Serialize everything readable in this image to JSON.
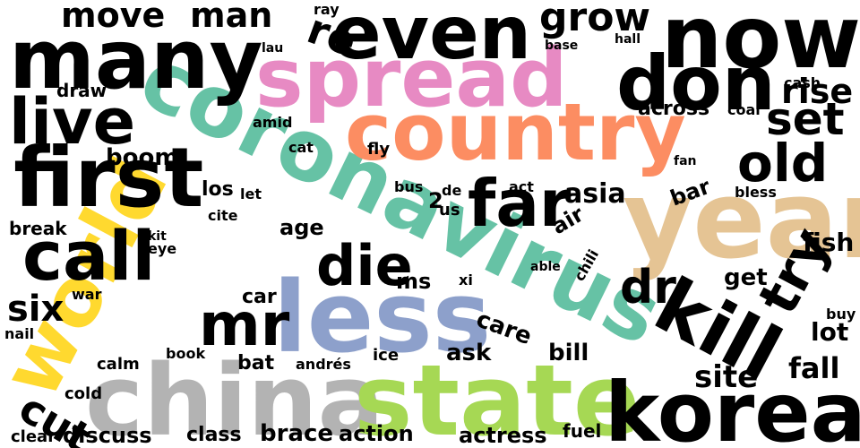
{
  "colors": {
    "background": "#ffffff",
    "default": "#000000",
    "teal": "#66c2a5",
    "orange": "#fc8d62",
    "blue": "#8da0cb",
    "pink": "#e78ac3",
    "green": "#a6d854",
    "yellow": "#ffd92f",
    "tan": "#e5c494",
    "gray": "#b3b3b3"
  },
  "words": [
    "coronavirus",
    "country",
    "spread",
    "year",
    "world",
    "china",
    "state",
    "less",
    "korea",
    "now",
    "many",
    "first",
    "even",
    "don",
    "kill",
    "call",
    "live",
    "far",
    "die",
    "try",
    "old",
    "mr",
    "set",
    "grow",
    "move",
    "man",
    "re",
    "rise",
    "dr",
    "six",
    "cut",
    "boom",
    "asia",
    "site",
    "fall",
    "fish",
    "lot",
    "get",
    "care",
    "bill",
    "ask",
    "ms",
    "age",
    "car",
    "bat",
    "los",
    "break",
    "draw",
    "across",
    "calm",
    "cold",
    "book",
    "discuss",
    "clear",
    "class",
    "brace",
    "action",
    "actress",
    "fuel",
    "bar",
    "air",
    "chili",
    "able",
    "ice",
    "us",
    "xi",
    "war",
    "nail",
    "eye",
    "kit",
    "cite",
    "let",
    "amid",
    "cat",
    "fly",
    "bus",
    "de",
    "act",
    "bless",
    "fan",
    "cash",
    "coal",
    "hall",
    "base",
    "ray",
    "lau",
    "andrés",
    "buy",
    "2"
  ]
}
